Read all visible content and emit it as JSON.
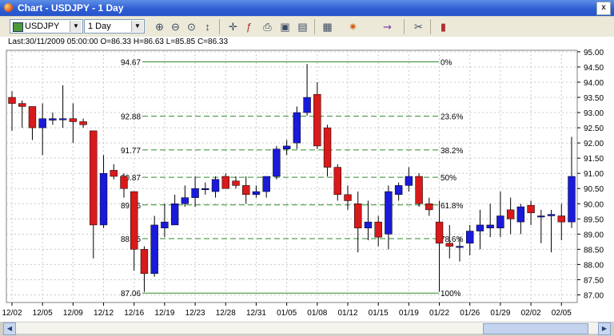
{
  "window": {
    "title": "Chart - USDJPY - 1 Day",
    "close_glyph": "x"
  },
  "toolbar": {
    "symbol": "USDJPY",
    "timeframe": "1 Day",
    "buttons": [
      "zoom-in-icon",
      "zoom-out-icon",
      "zoom-fit-icon",
      "cursor-icon",
      "crosshair-icon",
      "fibonacci-icon",
      "print-icon",
      "save-icon",
      "page-icon",
      "grid-icon",
      "drawing-icon",
      "indicator-icon",
      "properties-icon",
      "bar-style-icon"
    ]
  },
  "info": {
    "text": "Last:30/11/2009 05:00:00 O=86.33 H=86.63 L=85.85 C=86.33"
  },
  "chart_data": {
    "type": "candlestick",
    "up_color": "#1a1adb",
    "down_color": "#d81a1a",
    "ylim": [
      86.75,
      95.05
    ],
    "y_ticks": [
      "87.00",
      "87.50",
      "88.00",
      "88.50",
      "89.00",
      "89.50",
      "90.00",
      "90.50",
      "91.00",
      "91.50",
      "92.00",
      "92.50",
      "93.00",
      "93.50",
      "94.00",
      "94.50",
      "95.00"
    ],
    "x_labels": [
      "12/02",
      "12/05",
      "12/09",
      "12/12",
      "12/16",
      "12/19",
      "12/23",
      "12/28",
      "12/31",
      "01/05",
      "01/08",
      "01/12",
      "01/15",
      "01/19",
      "01/22",
      "01/26",
      "01/29",
      "02/02",
      "02/05"
    ],
    "fib_levels": [
      {
        "value": 94.67,
        "label": "94.67",
        "pct": "0%"
      },
      {
        "value": 92.88,
        "label": "92.88",
        "pct": "23.6%"
      },
      {
        "value": 91.77,
        "label": "91.77",
        "pct": "38.2%"
      },
      {
        "value": 90.87,
        "label": "90.87",
        "pct": "50%"
      },
      {
        "value": 89.96,
        "label": "89.96",
        "pct": "61.8%"
      },
      {
        "value": 88.85,
        "label": "88.85",
        "pct": "78.6%"
      },
      {
        "value": 87.06,
        "label": "87.06",
        "pct": "100%"
      }
    ],
    "candles": [
      {
        "o": 93.5,
        "h": 93.7,
        "l": 92.4,
        "c": 93.3
      },
      {
        "o": 93.3,
        "h": 93.4,
        "l": 92.5,
        "c": 93.2
      },
      {
        "o": 93.2,
        "h": 93.2,
        "l": 92.1,
        "c": 92.5
      },
      {
        "o": 92.5,
        "h": 93.3,
        "l": 91.6,
        "c": 92.8
      },
      {
        "o": 92.75,
        "h": 93.0,
        "l": 92.6,
        "c": 92.8
      },
      {
        "o": 92.8,
        "h": 93.9,
        "l": 92.5,
        "c": 92.8
      },
      {
        "o": 92.8,
        "h": 93.3,
        "l": 92.0,
        "c": 92.7
      },
      {
        "o": 92.7,
        "h": 92.8,
        "l": 92.5,
        "c": 92.6
      },
      {
        "o": 92.4,
        "h": 92.4,
        "l": 88.2,
        "c": 89.3
      },
      {
        "o": 89.3,
        "h": 91.6,
        "l": 89.2,
        "c": 91.0
      },
      {
        "o": 91.1,
        "h": 91.3,
        "l": 90.8,
        "c": 90.9
      },
      {
        "o": 90.9,
        "h": 91.0,
        "l": 90.2,
        "c": 90.5
      },
      {
        "o": 90.4,
        "h": 90.4,
        "l": 87.8,
        "c": 88.5
      },
      {
        "o": 88.5,
        "h": 88.6,
        "l": 87.1,
        "c": 87.7
      },
      {
        "o": 87.7,
        "h": 89.6,
        "l": 87.6,
        "c": 89.3
      },
      {
        "o": 89.2,
        "h": 90.0,
        "l": 88.9,
        "c": 89.4
      },
      {
        "o": 89.3,
        "h": 90.3,
        "l": 89.3,
        "c": 90.0
      },
      {
        "o": 90.0,
        "h": 90.6,
        "l": 89.9,
        "c": 90.2
      },
      {
        "o": 90.2,
        "h": 90.9,
        "l": 89.9,
        "c": 90.5
      },
      {
        "o": 90.5,
        "h": 90.7,
        "l": 90.3,
        "c": 90.5
      },
      {
        "o": 90.4,
        "h": 90.9,
        "l": 90.2,
        "c": 90.8
      },
      {
        "o": 90.9,
        "h": 91.0,
        "l": 90.5,
        "c": 90.5
      },
      {
        "o": 90.75,
        "h": 90.9,
        "l": 90.5,
        "c": 90.6
      },
      {
        "o": 90.6,
        "h": 90.9,
        "l": 90.0,
        "c": 90.3
      },
      {
        "o": 90.3,
        "h": 90.6,
        "l": 90.2,
        "c": 90.4
      },
      {
        "o": 90.4,
        "h": 90.9,
        "l": 90.2,
        "c": 90.9
      },
      {
        "o": 90.9,
        "h": 91.9,
        "l": 90.8,
        "c": 91.8
      },
      {
        "o": 91.8,
        "h": 92.1,
        "l": 91.6,
        "c": 91.9
      },
      {
        "o": 92.0,
        "h": 93.2,
        "l": 91.8,
        "c": 93.0
      },
      {
        "o": 93.0,
        "h": 94.6,
        "l": 92.9,
        "c": 93.5
      },
      {
        "o": 93.6,
        "h": 94.0,
        "l": 91.8,
        "c": 91.9
      },
      {
        "o": 92.5,
        "h": 92.6,
        "l": 90.9,
        "c": 91.2
      },
      {
        "o": 91.2,
        "h": 91.3,
        "l": 90.1,
        "c": 90.3
      },
      {
        "o": 90.3,
        "h": 90.6,
        "l": 89.8,
        "c": 90.1
      },
      {
        "o": 90.0,
        "h": 90.4,
        "l": 88.4,
        "c": 89.2
      },
      {
        "o": 89.2,
        "h": 90.1,
        "l": 88.8,
        "c": 89.4
      },
      {
        "o": 89.4,
        "h": 89.6,
        "l": 88.6,
        "c": 88.9
      },
      {
        "o": 89.0,
        "h": 90.6,
        "l": 88.5,
        "c": 90.4
      },
      {
        "o": 90.3,
        "h": 90.7,
        "l": 90.1,
        "c": 90.6
      },
      {
        "o": 90.6,
        "h": 91.2,
        "l": 90.4,
        "c": 90.9
      },
      {
        "o": 90.9,
        "h": 91.0,
        "l": 89.9,
        "c": 90.0
      },
      {
        "o": 90.0,
        "h": 90.2,
        "l": 89.6,
        "c": 89.8
      },
      {
        "o": 89.4,
        "h": 90.1,
        "l": 87.1,
        "c": 88.7
      },
      {
        "o": 88.7,
        "h": 89.3,
        "l": 88.2,
        "c": 88.6
      },
      {
        "o": 88.6,
        "h": 88.9,
        "l": 88.1,
        "c": 88.6
      },
      {
        "o": 88.7,
        "h": 89.3,
        "l": 88.3,
        "c": 89.1
      },
      {
        "o": 89.1,
        "h": 89.8,
        "l": 88.5,
        "c": 89.3
      },
      {
        "o": 89.2,
        "h": 90.0,
        "l": 88.9,
        "c": 89.3
      },
      {
        "o": 89.2,
        "h": 90.4,
        "l": 88.9,
        "c": 89.6
      },
      {
        "o": 89.8,
        "h": 90.2,
        "l": 89.0,
        "c": 89.5
      },
      {
        "o": 89.4,
        "h": 90.0,
        "l": 89.0,
        "c": 89.9
      },
      {
        "o": 89.95,
        "h": 90.1,
        "l": 89.3,
        "c": 89.7
      },
      {
        "o": 89.6,
        "h": 89.8,
        "l": 88.7,
        "c": 89.6
      },
      {
        "o": 89.6,
        "h": 89.8,
        "l": 88.4,
        "c": 89.65
      },
      {
        "o": 89.6,
        "h": 90.0,
        "l": 88.8,
        "c": 89.4
      },
      {
        "o": 89.4,
        "h": 92.2,
        "l": 89.2,
        "c": 90.9
      }
    ]
  }
}
